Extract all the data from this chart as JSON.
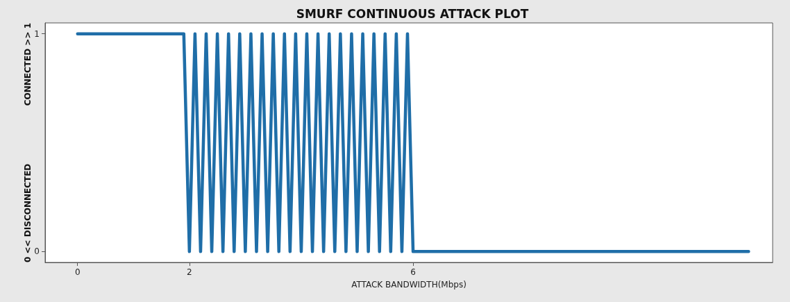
{
  "chart_data": {
    "type": "line",
    "title": "SMURF CONTINUOUS ATTACK PLOT",
    "xlabel": "ATTACK BANDWIDTH(Mbps)",
    "annotations": [
      "0 << DISCONNECTED",
      "CONNECTED >> 1"
    ],
    "x": [
      0,
      1.9,
      2.0,
      2.1,
      2.2,
      2.3,
      2.4,
      2.5,
      2.6,
      2.7,
      2.8,
      2.9,
      3.0,
      3.1,
      3.2,
      3.3,
      3.4,
      3.5,
      3.6,
      3.7,
      3.8,
      3.9,
      4.0,
      4.1,
      4.2,
      4.3,
      4.4,
      4.5,
      4.6,
      4.7,
      4.8,
      4.9,
      5.0,
      5.1,
      5.2,
      5.3,
      5.4,
      5.5,
      5.6,
      5.7,
      5.8,
      5.9,
      6.0,
      12
    ],
    "series": [
      {
        "color": "#1f6ea8",
        "values": [
          1,
          1,
          0,
          1,
          0,
          1,
          0,
          1,
          0,
          1,
          0,
          1,
          0,
          1,
          0,
          1,
          0,
          1,
          0,
          1,
          0,
          1,
          0,
          1,
          0,
          1,
          0,
          1,
          0,
          1,
          0,
          1,
          0,
          1,
          0,
          1,
          0,
          1,
          0,
          1,
          0,
          1,
          0,
          0
        ]
      }
    ],
    "xlim": [
      -0.58,
      12.43
    ],
    "xticks": [
      0,
      2,
      6
    ],
    "ylim": [
      -0.05,
      1.05
    ],
    "yticks": [
      0,
      1
    ],
    "grid": false,
    "marker": "none",
    "line_style": "solid"
  }
}
